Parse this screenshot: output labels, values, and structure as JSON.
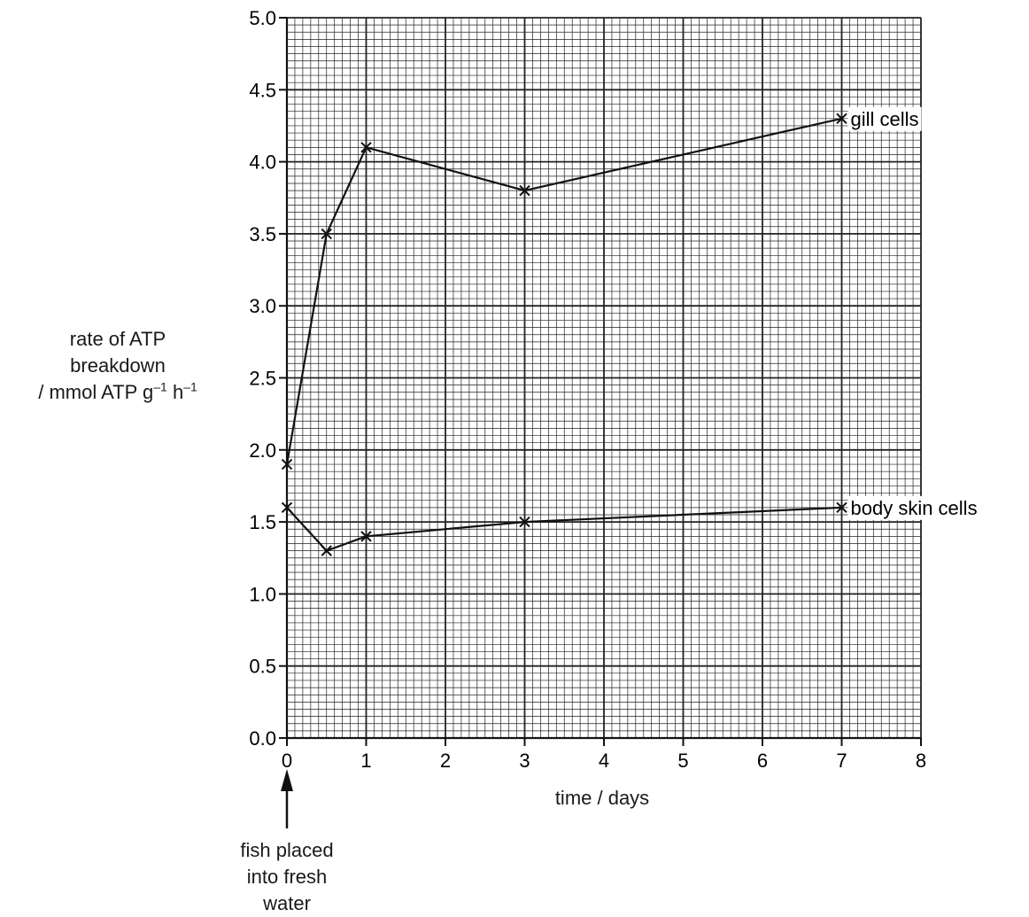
{
  "chart_data": {
    "type": "line",
    "xlabel": "time / days",
    "ylabel_lines": [
      "rate of ATP",
      "breakdown"
    ],
    "ylabel_unit": {
      "prefix": "/ mmol ATP g",
      "sup1": "–1",
      "mid": " h",
      "sup2": "–1"
    },
    "xlim": [
      0,
      8
    ],
    "ylim": [
      0,
      5
    ],
    "x_ticks": [
      "0",
      "1",
      "2",
      "3",
      "4",
      "5",
      "6",
      "7",
      "8"
    ],
    "y_ticks": [
      "0.0",
      "0.5",
      "1.0",
      "1.5",
      "2.0",
      "2.5",
      "3.0",
      "3.5",
      "4.0",
      "4.5",
      "5.0"
    ],
    "grid": true,
    "marker": "x",
    "series": [
      {
        "name": "gill cells",
        "x": [
          0,
          0.5,
          1,
          3,
          7
        ],
        "y": [
          1.9,
          3.5,
          4.1,
          3.8,
          4.3
        ]
      },
      {
        "name": "body skin cells",
        "x": [
          0,
          0.5,
          1,
          3,
          7
        ],
        "y": [
          1.6,
          1.3,
          1.4,
          1.5,
          1.6
        ]
      }
    ],
    "annotation": {
      "lines": [
        "fish placed",
        "into fresh",
        "water"
      ],
      "at_x": 0
    }
  }
}
